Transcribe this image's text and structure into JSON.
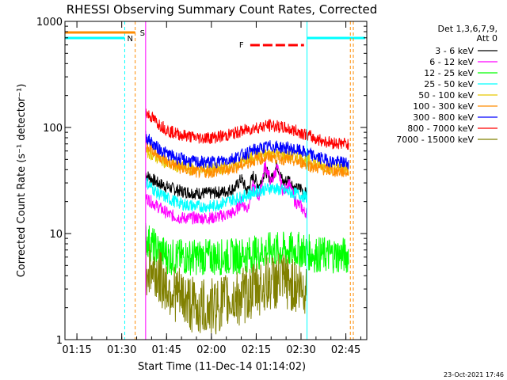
{
  "chart_data": {
    "type": "line",
    "title": "RHESSI Observing Summary Count Rates, Corrected",
    "xlabel": "Start Time (11-Dec-14 01:14:02)",
    "ylabel": "Corrected Count Rate (s⁻¹ detector⁻¹)",
    "y_scale": "log",
    "ylim": [
      1,
      1000
    ],
    "xlim": [
      "01:11",
      "02:52"
    ],
    "x_ticks": [
      "01:15",
      "01:30",
      "01:45",
      "02:00",
      "02:15",
      "02:30",
      "02:45"
    ],
    "y_ticks": [
      "1",
      "10",
      "100",
      "1000"
    ],
    "legend_title": [
      "Det 1,3,6,7,9,",
      "Att 0"
    ],
    "legend_position": "right",
    "footer": "23-Oct-2021 17:46",
    "markers": {
      "S": {
        "time": "01:34.5",
        "label": "S",
        "color": "#ff8c00"
      },
      "N": {
        "time": "01:31",
        "label": "N",
        "color": "#00ffff"
      },
      "F": {
        "start": "02:13",
        "end": "02:31",
        "label": "F",
        "color": "#ff0000"
      }
    },
    "intervals": {
      "night_end": "01:31",
      "night_start": "02:32",
      "data_gap_end": "01:37",
      "data_gap_start_lines": [
        "01:38",
        "02:46.5",
        "02:47.5"
      ]
    },
    "series": [
      {
        "name": "3 - 6 keV",
        "color": "#000000",
        "x": [
          "01:38",
          "01:42",
          "01:46",
          "01:50",
          "01:55",
          "02:00",
          "02:05",
          "02:08",
          "02:10",
          "02:12",
          "02:14",
          "02:16",
          "02:18",
          "02:20",
          "02:22",
          "02:24",
          "02:26",
          "02:28",
          "02:30",
          "02:31",
          "02:32"
        ],
        "y": [
          36,
          30,
          27,
          25,
          24,
          24,
          25,
          27,
          33,
          25,
          35,
          28,
          40,
          32,
          45,
          30,
          33,
          26,
          27,
          24,
          24
        ]
      },
      {
        "name": "6 - 12 keV",
        "color": "#ff00ff",
        "x": [
          "01:38",
          "01:42",
          "01:46",
          "01:50",
          "01:55",
          "02:00",
          "02:05",
          "02:08",
          "02:10",
          "02:12",
          "02:14",
          "02:16",
          "02:18",
          "02:20",
          "02:22",
          "02:24",
          "02:26",
          "02:28",
          "02:30",
          "02:31",
          "02:32"
        ],
        "y": [
          22,
          18,
          15,
          14,
          14,
          14,
          15,
          16,
          20,
          17,
          28,
          22,
          45,
          30,
          42,
          25,
          30,
          20,
          18,
          16,
          16
        ]
      },
      {
        "name": "12 - 25 keV",
        "color": "#00ff00",
        "x": [
          "01:38",
          "01:42",
          "01:46",
          "01:50",
          "01:55",
          "02:00",
          "02:05",
          "02:10",
          "02:15",
          "02:20",
          "02:25",
          "02:30",
          "02:35",
          "02:40",
          "02:46"
        ],
        "y": [
          9,
          7,
          6,
          6,
          6,
          6,
          6,
          6.2,
          6.5,
          7,
          7,
          7,
          6.3,
          6.3,
          6.2
        ]
      },
      {
        "name": "25 - 50 keV",
        "color": "#00ffff",
        "x": [
          "01:38",
          "01:42",
          "01:46",
          "01:50",
          "01:55",
          "02:00",
          "02:05",
          "02:10",
          "02:15",
          "02:20",
          "02:25",
          "02:30",
          "02:32"
        ],
        "y": [
          31,
          24,
          21,
          19,
          18,
          18,
          20,
          22,
          25,
          27,
          25,
          23,
          22
        ]
      },
      {
        "name": "50 - 100 keV",
        "color": "#e6c800",
        "x": [
          "01:38",
          "01:42",
          "01:46",
          "01:50",
          "01:55",
          "02:00",
          "02:05",
          "02:10",
          "02:15",
          "02:20",
          "02:25",
          "02:30",
          "02:35",
          "02:40",
          "02:46"
        ],
        "y": [
          60,
          52,
          45,
          42,
          40,
          40,
          42,
          47,
          54,
          57,
          54,
          52,
          46,
          42,
          40
        ]
      },
      {
        "name": "100 - 300 keV",
        "color": "#ff8c00",
        "x": [
          "01:38",
          "01:42",
          "01:46",
          "01:50",
          "01:55",
          "02:00",
          "02:05",
          "02:10",
          "02:15",
          "02:20",
          "02:25",
          "02:30",
          "02:35",
          "02:40",
          "02:46"
        ],
        "y": [
          72,
          55,
          46,
          41,
          38,
          38,
          40,
          44,
          50,
          53,
          50,
          47,
          42,
          39,
          38
        ]
      },
      {
        "name": "300 - 800 keV",
        "color": "#0000ff",
        "x": [
          "01:38",
          "01:42",
          "01:46",
          "01:50",
          "01:55",
          "02:00",
          "02:05",
          "02:10",
          "02:15",
          "02:20",
          "02:25",
          "02:30",
          "02:35",
          "02:40",
          "02:46"
        ],
        "y": [
          82,
          64,
          55,
          50,
          47,
          47,
          49,
          55,
          62,
          67,
          64,
          60,
          53,
          48,
          46
        ]
      },
      {
        "name": "800 - 7000 keV",
        "color": "#ff0000",
        "x": [
          "01:38",
          "01:42",
          "01:46",
          "01:50",
          "01:55",
          "02:00",
          "02:05",
          "02:10",
          "02:15",
          "02:20",
          "02:25",
          "02:30",
          "02:35",
          "02:40",
          "02:46"
        ],
        "y": [
          140,
          110,
          92,
          85,
          80,
          80,
          84,
          92,
          100,
          105,
          98,
          90,
          78,
          72,
          70
        ]
      },
      {
        "name": "7000 - 15000 keV",
        "color": "#808000",
        "x": [
          "01:38",
          "01:42",
          "01:46",
          "01:50",
          "01:55",
          "02:00",
          "02:05",
          "02:10",
          "02:15",
          "02:20",
          "02:25",
          "02:30",
          "02:32"
        ],
        "y": [
          5,
          4,
          3,
          2.5,
          2,
          2,
          2.3,
          2.5,
          3,
          3.5,
          3.5,
          3,
          3
        ]
      }
    ]
  }
}
